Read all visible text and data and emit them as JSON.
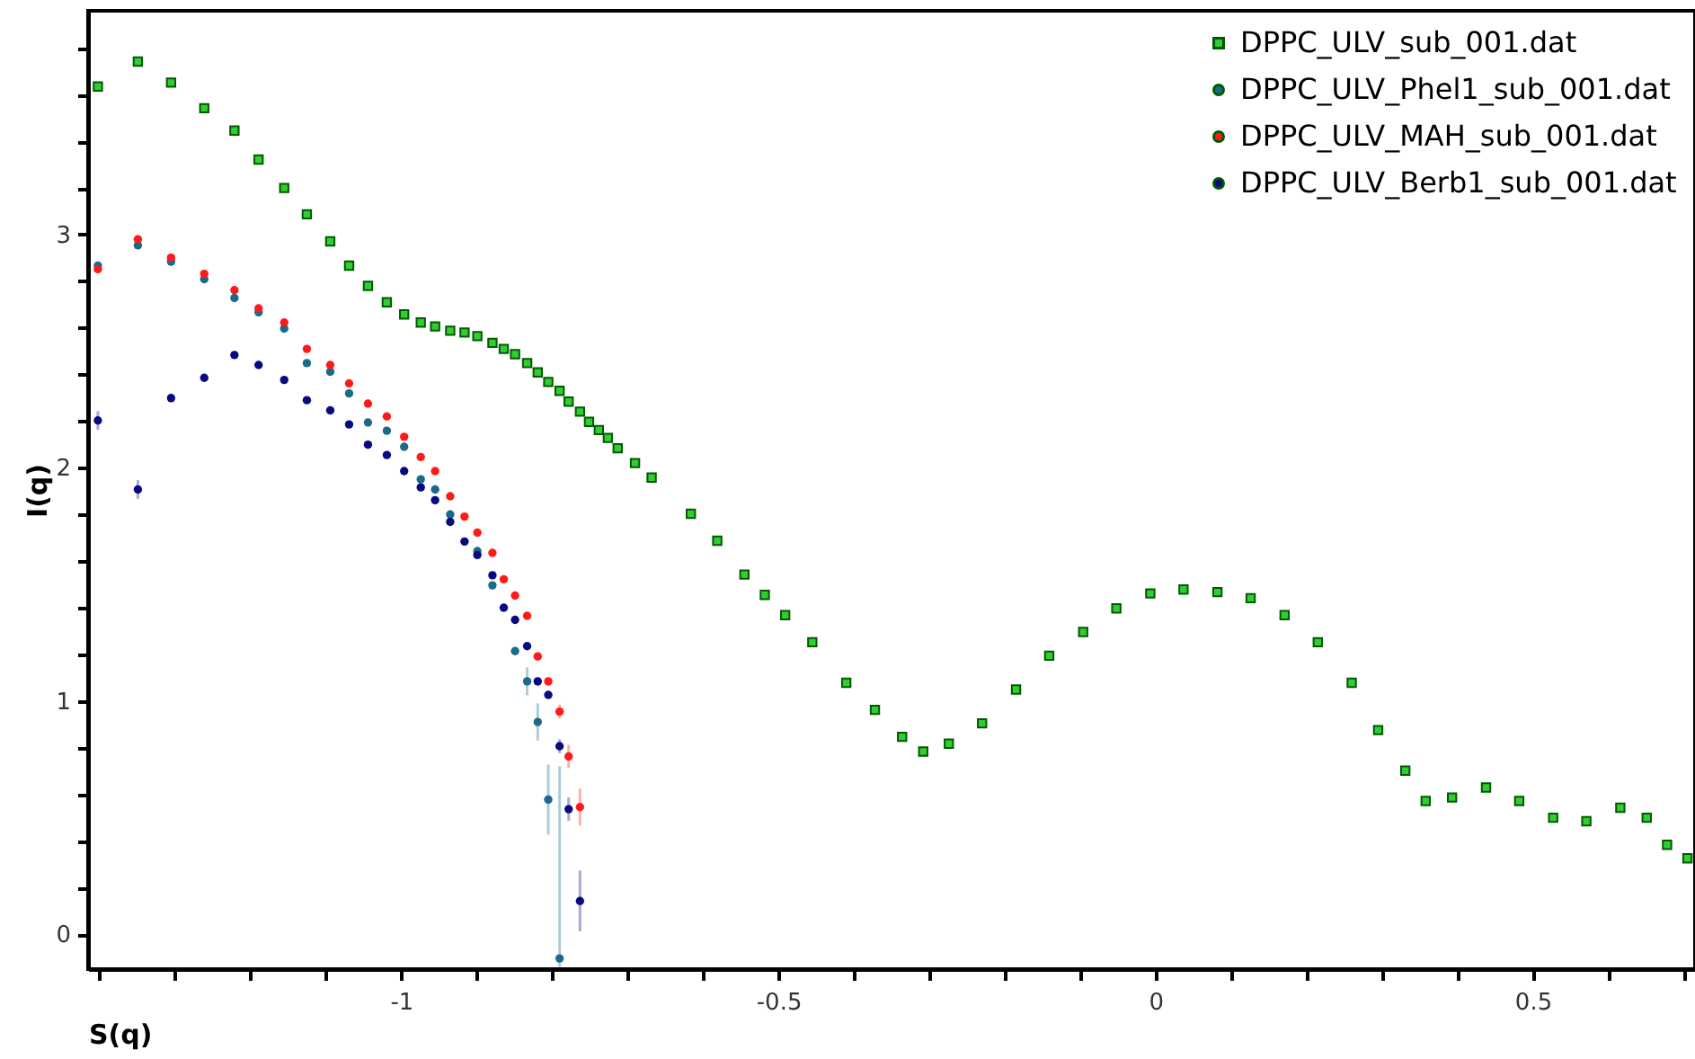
{
  "chart_data": {
    "type": "scatter",
    "xlabel": "S(q)",
    "ylabel": "I(q)",
    "xlim": [
      -1.415,
      0.715
    ],
    "ylim": [
      -0.15,
      3.96
    ],
    "xticks": [
      {
        "value": -1.4,
        "label": null
      },
      {
        "value": -1.3,
        "label": null
      },
      {
        "value": -1.2,
        "label": null
      },
      {
        "value": -1.1,
        "label": null
      },
      {
        "value": -1,
        "label": "-1"
      },
      {
        "value": -0.9,
        "label": null
      },
      {
        "value": -0.8,
        "label": null
      },
      {
        "value": -0.7,
        "label": null
      },
      {
        "value": -0.6,
        "label": null
      },
      {
        "value": -0.5,
        "label": "-0.5"
      },
      {
        "value": -0.4,
        "label": null
      },
      {
        "value": -0.3,
        "label": null
      },
      {
        "value": -0.2,
        "label": null
      },
      {
        "value": -0.1,
        "label": null
      },
      {
        "value": 0,
        "label": "0"
      },
      {
        "value": 0.1,
        "label": null
      },
      {
        "value": 0.2,
        "label": null
      },
      {
        "value": 0.3,
        "label": null
      },
      {
        "value": 0.4,
        "label": null
      },
      {
        "value": 0.5,
        "label": "0.5"
      },
      {
        "value": 0.6,
        "label": null
      },
      {
        "value": 0.7,
        "label": null
      }
    ],
    "yticks": [
      {
        "value": 0,
        "label": "0"
      },
      {
        "value": 0.2,
        "label": null
      },
      {
        "value": 0.4,
        "label": null
      },
      {
        "value": 0.6,
        "label": null
      },
      {
        "value": 0.8,
        "label": null
      },
      {
        "value": 1,
        "label": "1"
      },
      {
        "value": 1.2,
        "label": null
      },
      {
        "value": 1.4,
        "label": null
      },
      {
        "value": 1.6,
        "label": null
      },
      {
        "value": 1.8,
        "label": null
      },
      {
        "value": 2,
        "label": "2"
      },
      {
        "value": 2.2,
        "label": null
      },
      {
        "value": 2.4,
        "label": null
      },
      {
        "value": 2.6,
        "label": null
      },
      {
        "value": 2.8,
        "label": null
      },
      {
        "value": 3,
        "label": "3"
      },
      {
        "value": 3.2,
        "label": null
      },
      {
        "value": 3.4,
        "label": null
      },
      {
        "value": 3.6,
        "label": null
      },
      {
        "value": 3.8,
        "label": null
      }
    ],
    "grid": false,
    "legend": "top right",
    "series": [
      {
        "name": "DPPC_ULV_sub_001.dat",
        "color": "#33cc33",
        "marker": "square",
        "x": [
          -1.402,
          -1.349,
          -1.305,
          -1.261,
          -1.221,
          -1.189,
          -1.155,
          -1.125,
          -1.094,
          -1.069,
          -1.044,
          -1.019,
          -0.996,
          -0.974,
          -0.955,
          -0.935,
          -0.916,
          -0.899,
          -0.879,
          -0.864,
          -0.849,
          -0.833,
          -0.819,
          -0.805,
          -0.79,
          -0.778,
          -0.763,
          -0.751,
          -0.738,
          -0.726,
          -0.713,
          -0.69,
          -0.668,
          -0.616,
          -0.581,
          -0.545,
          -0.518,
          -0.491,
          -0.455,
          -0.41,
          -0.372,
          -0.336,
          -0.308,
          -0.274,
          -0.23,
          -0.185,
          -0.141,
          -0.096,
          -0.052,
          -0.007,
          0.037,
          0.082,
          0.126,
          0.171,
          0.215,
          0.26,
          0.295,
          0.331,
          0.358,
          0.393,
          0.438,
          0.482,
          0.527,
          0.571,
          0.616,
          0.651,
          0.678,
          0.705
        ],
        "values": [
          3.635,
          3.742,
          3.652,
          3.542,
          3.446,
          3.322,
          3.2,
          3.087,
          2.971,
          2.867,
          2.78,
          2.71,
          2.658,
          2.623,
          2.606,
          2.588,
          2.58,
          2.565,
          2.536,
          2.51,
          2.487,
          2.449,
          2.409,
          2.368,
          2.33,
          2.284,
          2.241,
          2.197,
          2.162,
          2.128,
          2.084,
          2.02,
          1.958,
          1.803,
          1.687,
          1.542,
          1.455,
          1.368,
          1.252,
          1.078,
          0.962,
          0.846,
          0.783,
          0.817,
          0.904,
          1.049,
          1.194,
          1.296,
          1.397,
          1.461,
          1.478,
          1.467,
          1.441,
          1.368,
          1.252,
          1.078,
          0.875,
          0.701,
          0.571,
          0.586,
          0.629,
          0.571,
          0.499,
          0.484,
          0.542,
          0.499,
          0.383,
          0.325
        ]
      },
      {
        "name": "DPPC_ULV_Phel1_sub_001.dat",
        "color": "#1a6a8a",
        "marker": "circle",
        "x": [
          -1.402,
          -1.349,
          -1.305,
          -1.261,
          -1.221,
          -1.189,
          -1.155,
          -1.125,
          -1.094,
          -1.069,
          -1.044,
          -1.019,
          -0.996,
          -0.974,
          -0.955,
          -0.935,
          -0.899,
          -0.879,
          -0.849,
          -0.833,
          -0.819,
          -0.805,
          -0.79
        ],
        "values": [
          2.867,
          2.954,
          2.884,
          2.809,
          2.728,
          2.667,
          2.597,
          2.449,
          2.412,
          2.319,
          2.194,
          2.159,
          2.09,
          1.951,
          1.907,
          1.8,
          1.643,
          1.496,
          1.214,
          1.084,
          0.91,
          0.577,
          -0.104
        ],
        "errors": [
          null,
          null,
          null,
          null,
          null,
          null,
          null,
          null,
          null,
          null,
          null,
          null,
          null,
          null,
          null,
          null,
          null,
          null,
          null,
          0.06,
          0.08,
          0.15,
          [
            -0.14,
            0.72
          ]
        ]
      },
      {
        "name": "DPPC_ULV_MAH_sub_001.dat",
        "color": "#ff1a1a",
        "marker": "circle",
        "x": [
          -1.402,
          -1.349,
          -1.305,
          -1.261,
          -1.221,
          -1.189,
          -1.155,
          -1.125,
          -1.094,
          -1.069,
          -1.044,
          -1.019,
          -0.996,
          -0.974,
          -0.955,
          -0.935,
          -0.916,
          -0.899,
          -0.879,
          -0.864,
          -0.849,
          -0.833,
          -0.819,
          -0.805,
          -0.79,
          -0.778,
          -0.763
        ],
        "values": [
          2.852,
          2.98,
          2.901,
          2.832,
          2.762,
          2.684,
          2.623,
          2.51,
          2.441,
          2.362,
          2.275,
          2.22,
          2.133,
          2.046,
          1.986,
          1.878,
          1.791,
          1.722,
          1.635,
          1.522,
          1.452,
          1.365,
          1.191,
          1.084,
          0.954,
          0.762,
          0.545
        ],
        "errors": [
          null,
          null,
          null,
          null,
          null,
          null,
          null,
          null,
          null,
          null,
          null,
          null,
          null,
          null,
          null,
          null,
          null,
          null,
          null,
          null,
          null,
          null,
          null,
          null,
          0.03,
          0.05,
          0.08
        ]
      },
      {
        "name": "DPPC_ULV_Berb1_sub_001.dat",
        "color": "#0a0a80",
        "marker": "circle",
        "x": [
          -1.402,
          -1.349,
          -1.305,
          -1.261,
          -1.221,
          -1.189,
          -1.155,
          -1.125,
          -1.094,
          -1.069,
          -1.044,
          -1.019,
          -0.996,
          -0.974,
          -0.955,
          -0.935,
          -0.916,
          -0.899,
          -0.879,
          -0.864,
          -0.849,
          -0.833,
          -0.819,
          -0.805,
          -0.79,
          -0.778,
          -0.763
        ],
        "values": [
          2.203,
          1.907,
          2.299,
          2.386,
          2.484,
          2.441,
          2.377,
          2.29,
          2.246,
          2.186,
          2.099,
          2.055,
          1.986,
          1.916,
          1.861,
          1.768,
          1.684,
          1.626,
          1.539,
          1.4,
          1.348,
          1.235,
          1.084,
          1.026,
          0.806,
          0.536,
          0.142
        ],
        "errors": [
          0.04,
          0.04,
          null,
          null,
          null,
          null,
          null,
          null,
          null,
          null,
          null,
          null,
          null,
          null,
          null,
          null,
          null,
          null,
          null,
          null,
          null,
          null,
          null,
          null,
          0.03,
          0.05,
          0.13
        ]
      }
    ]
  }
}
